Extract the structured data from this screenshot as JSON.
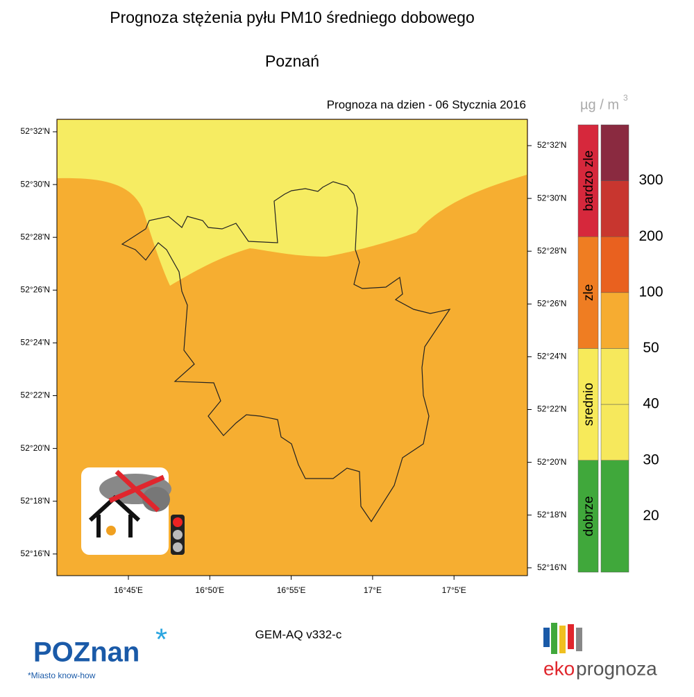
{
  "header": {
    "title": "Prognoza stężenia pyłu PM10 średniego dobowego",
    "subtitle": "Poznań",
    "forecast_label": "Prognoza na dzien -  06 Stycznia 2016"
  },
  "map": {
    "lat_labels": [
      "52°32'N",
      "52°30'N",
      "52°28'N",
      "52°26'N",
      "52°24'N",
      "52°22'N",
      "52°20'N",
      "52°18'N",
      "52°16'N"
    ],
    "lon_labels": [
      "16°45'E",
      "16°50'E",
      "16°55'E",
      "17°E",
      "17°5'E"
    ]
  },
  "legend": {
    "unit_base": "µg / m",
    "unit_exponent": "3",
    "categories": [
      {
        "label": "bardzo zle",
        "color": "#d6283c"
      },
      {
        "label": "zle",
        "color": "#ef7d22"
      },
      {
        "label": "srednio",
        "color": "#f7ea5a"
      },
      {
        "label": "dobrze",
        "color": "#40a83b"
      }
    ],
    "bands": [
      "#8a2a40",
      "#c8362f",
      "#e9611f",
      "#f6ac31",
      "#f6e85c",
      "#f6e85c",
      "#40a83b"
    ],
    "scale_labels": [
      300,
      200,
      100,
      50,
      40,
      30,
      20
    ]
  },
  "footer": {
    "model": "GEM-AQ v332-c",
    "city_logo": "POZnan",
    "city_logo_star": "*",
    "city_slogan": "*Miasto know-how",
    "eko_prefix": "eko",
    "eko_suffix": "prognoza"
  }
}
